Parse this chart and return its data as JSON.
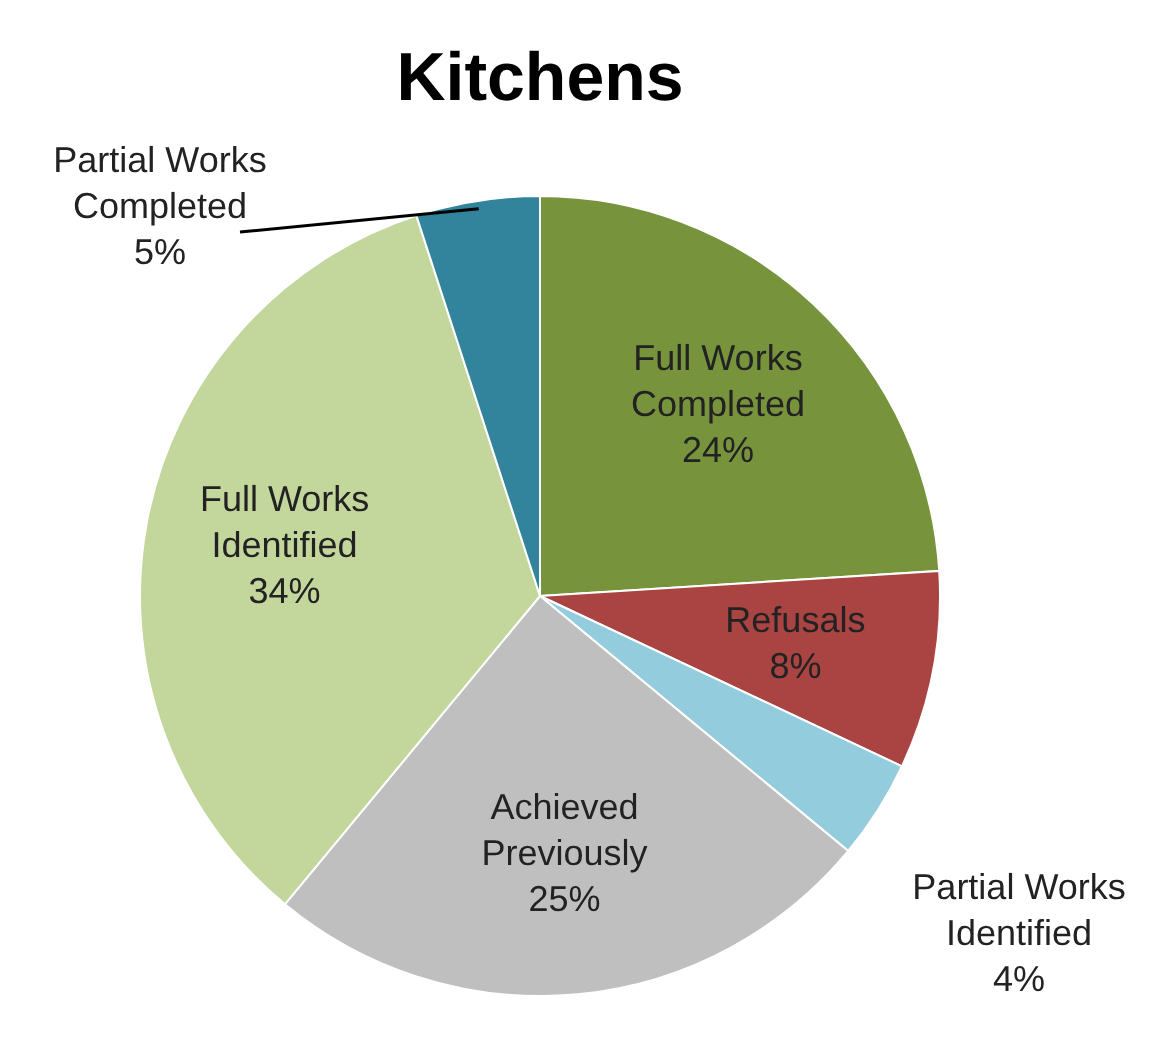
{
  "chart_data": {
    "type": "pie",
    "title": "Kitchens",
    "categories": [
      "Full Works Completed",
      "Refusals",
      "Partial Works Identified",
      "Achieved Previously",
      "Full Works Identified",
      "Partial Works Completed"
    ],
    "values": [
      24,
      8,
      4,
      25,
      34,
      5
    ],
    "value_labels": [
      "24%",
      "8%",
      "4%",
      "25%",
      "34%",
      "5%"
    ],
    "colors": [
      "#77933c",
      "#a94442",
      "#93cddd",
      "#bfbfbf",
      "#c3d69b",
      "#31849b"
    ]
  }
}
